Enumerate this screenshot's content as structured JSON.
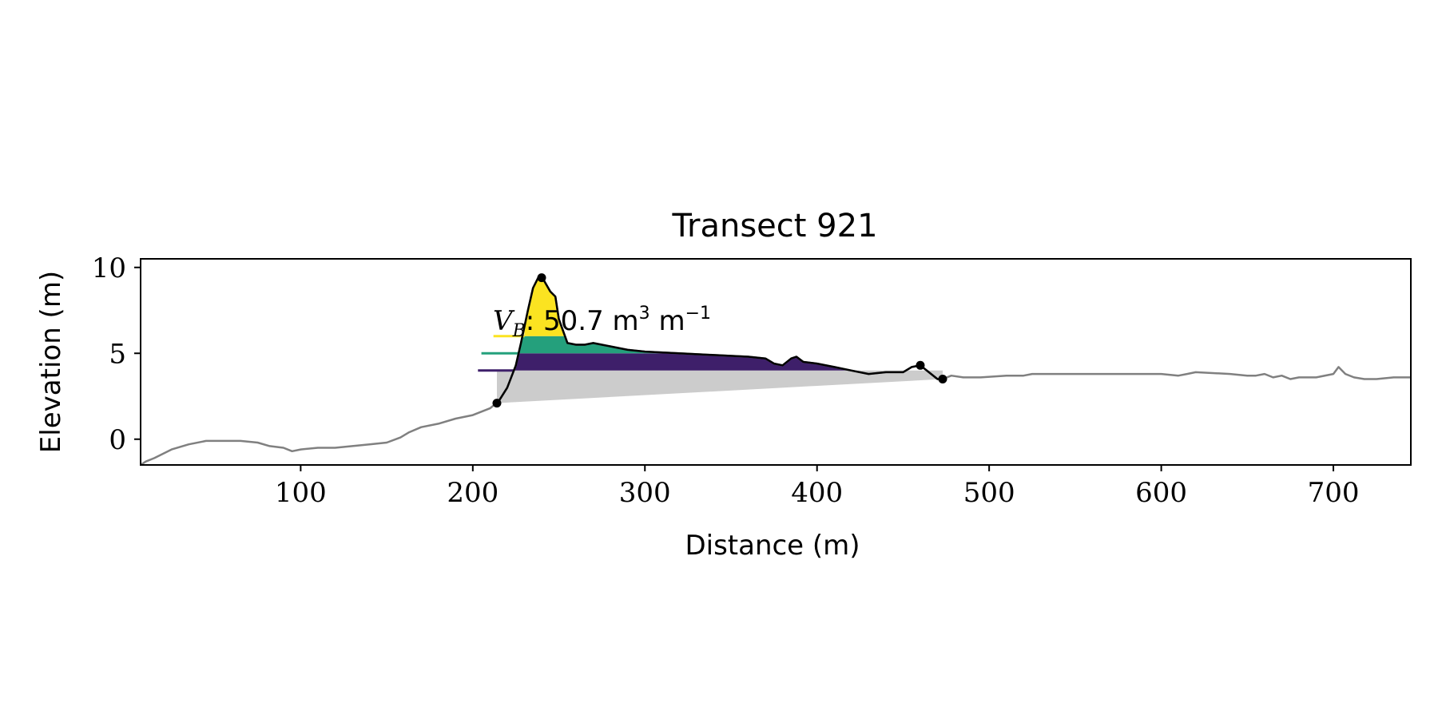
{
  "chart_data": {
    "type": "line",
    "title": "Transect 921",
    "xlabel": "Distance (m)",
    "ylabel": "Elevation (m)",
    "xlim": [
      7,
      745
    ],
    "ylim": [
      -1.5,
      10.5
    ],
    "xticks": [
      100,
      200,
      300,
      400,
      500,
      600,
      700
    ],
    "yticks": [
      0,
      5,
      10
    ],
    "grid": false,
    "annotation": {
      "symbol": "V",
      "subscript": "B",
      "text": ": 50.7 m",
      "exponent": "3",
      "unit2": " m",
      "exponent2": "−1"
    },
    "profile": {
      "x": [
        7,
        10,
        15,
        25,
        35,
        45,
        55,
        65,
        75,
        82,
        90,
        95,
        100,
        110,
        120,
        130,
        140,
        150,
        158,
        163,
        170,
        180,
        190,
        200,
        210,
        215,
        220,
        225,
        228,
        232,
        235,
        238,
        241,
        245,
        248,
        250,
        255,
        260,
        265,
        270,
        275,
        280,
        290,
        300,
        320,
        340,
        360,
        370,
        375,
        380,
        385,
        388,
        392,
        400,
        410,
        420,
        430,
        440,
        450,
        455,
        460,
        465,
        470,
        473,
        478,
        485,
        495,
        510,
        520,
        525,
        540,
        560,
        580,
        590,
        600,
        610,
        615,
        620,
        640,
        650,
        655,
        660,
        665,
        670,
        675,
        680,
        690,
        700,
        703,
        707,
        712,
        718,
        725,
        735,
        745
      ],
      "y": [
        -1.5,
        -1.3,
        -1.1,
        -0.6,
        -0.3,
        -0.1,
        -0.1,
        -0.1,
        -0.2,
        -0.4,
        -0.5,
        -0.7,
        -0.6,
        -0.5,
        -0.5,
        -0.4,
        -0.3,
        -0.2,
        0.1,
        0.4,
        0.7,
        0.9,
        1.2,
        1.4,
        1.8,
        2.2,
        3.0,
        4.3,
        5.6,
        7.5,
        8.8,
        9.4,
        9.3,
        8.6,
        8.3,
        7.0,
        5.6,
        5.5,
        5.5,
        5.6,
        5.5,
        5.4,
        5.2,
        5.1,
        5.0,
        4.9,
        4.8,
        4.7,
        4.4,
        4.3,
        4.7,
        4.8,
        4.5,
        4.4,
        4.2,
        4.0,
        3.8,
        3.9,
        3.9,
        4.2,
        4.3,
        3.9,
        3.5,
        3.5,
        3.7,
        3.6,
        3.6,
        3.7,
        3.7,
        3.8,
        3.8,
        3.8,
        3.8,
        3.8,
        3.8,
        3.7,
        3.8,
        3.9,
        3.8,
        3.7,
        3.7,
        3.8,
        3.6,
        3.7,
        3.5,
        3.6,
        3.6,
        3.8,
        4.2,
        3.8,
        3.6,
        3.5,
        3.5,
        3.6,
        3.6
      ]
    },
    "markers": [
      {
        "x": 214,
        "y": 2.1
      },
      {
        "x": 240,
        "y": 9.4
      },
      {
        "x": 460,
        "y": 4.3
      },
      {
        "x": 473,
        "y": 3.5
      }
    ],
    "base_polygon": {
      "x": [
        214,
        473,
        473,
        214
      ],
      "y": [
        2.1,
        3.5,
        4.0,
        4.0
      ]
    },
    "bands": [
      {
        "name": "lower",
        "color": "#3e1f6a",
        "level_low": 4.0,
        "level_high": 5.0,
        "x_start": 224,
        "x_end": 432
      },
      {
        "name": "middle",
        "color": "#24a07c",
        "level_low": 5.0,
        "level_high": 6.0,
        "x_start": 227,
        "x_end": 432
      },
      {
        "name": "upper",
        "color": "#fbe321",
        "level_low": 6.0,
        "level_high": 10.0,
        "x_start": 230,
        "x_end": 255
      }
    ],
    "level_lines": [
      {
        "y": 4.0,
        "x_start": 203,
        "x_end": 224,
        "color": "#3e1f6a"
      },
      {
        "y": 5.0,
        "x_start": 205,
        "x_end": 227,
        "color": "#24a07c"
      },
      {
        "y": 6.0,
        "x_start": 212,
        "x_end": 230,
        "color": "#fbe321"
      }
    ],
    "colors": {
      "profile_full": "#808080",
      "profile_focus": "#000000",
      "base_fill": "#cccccc"
    }
  }
}
